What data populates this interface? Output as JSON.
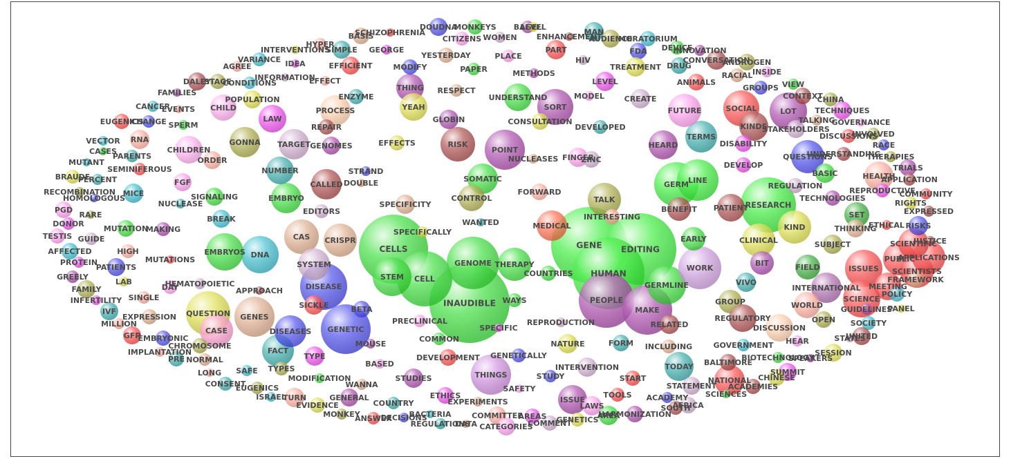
{
  "words": [
    {
      "t": "CELLS",
      "c": "#33dd33",
      "r": 50
    },
    {
      "t": "INAUDIBLE",
      "c": "#33dd33",
      "r": 58
    },
    {
      "t": "CELL",
      "c": "#33dd33",
      "r": 40
    },
    {
      "t": "GENOME",
      "c": "#33dd33",
      "r": 38
    },
    {
      "t": "STEM",
      "c": "#33dd33",
      "r": 28
    },
    {
      "t": "THERAPY",
      "c": "#33dd33",
      "r": 24
    },
    {
      "t": "GENE",
      "c": "#33ee33",
      "r": 55
    },
    {
      "t": "EDITING",
      "c": "#33ee33",
      "r": 52
    },
    {
      "t": "HUMAN",
      "c": "#33ee33",
      "r": 52
    },
    {
      "t": "PEOPLE",
      "c": "#aa44aa",
      "r": 40
    },
    {
      "t": "MAKE",
      "c": "#aa44aa",
      "r": 36
    },
    {
      "t": "GERMLINE",
      "c": "#33dd33",
      "r": 28
    },
    {
      "t": "RESEARCH",
      "c": "#33ee33",
      "r": 40
    },
    {
      "t": "GERM",
      "c": "#33ee33",
      "r": 32
    },
    {
      "t": "LINE",
      "c": "#33ee33",
      "r": 30
    },
    {
      "t": "DISEASE",
      "c": "#4444ee",
      "r": 34
    },
    {
      "t": "GENETIC",
      "c": "#4444ee",
      "r": 36
    },
    {
      "t": "DNA",
      "c": "#33bbcc",
      "r": 27
    },
    {
      "t": "EMBRYOS",
      "c": "#33dd33",
      "r": 27
    },
    {
      "t": "EMBRYO",
      "c": "#33dd33",
      "r": 22
    },
    {
      "t": "CAS",
      "c": "#ddaa88",
      "r": 25
    },
    {
      "t": "CRISPR",
      "c": "#ddaa88",
      "r": 24
    },
    {
      "t": "SYSTEM",
      "c": "#ccaacc",
      "r": 23
    },
    {
      "t": "GENES",
      "c": "#ddaa88",
      "r": 29
    },
    {
      "t": "QUESTION",
      "c": "#dddd44",
      "r": 32
    },
    {
      "t": "CASE",
      "c": "#ff99cc",
      "r": 24
    },
    {
      "t": "FACT",
      "c": "#33aaaa",
      "r": 23
    },
    {
      "t": "DISEASES",
      "c": "#4444ee",
      "r": 23
    },
    {
      "t": "THINGS",
      "c": "#cc88dd",
      "r": 29
    },
    {
      "t": "WORK",
      "c": "#cc99dd",
      "r": 31
    },
    {
      "t": "POINT",
      "c": "#aa44aa",
      "r": 29
    },
    {
      "t": "RISK",
      "c": "#aa4444",
      "r": 25
    },
    {
      "t": "TALK",
      "c": "#aaaa44",
      "r": 24
    },
    {
      "t": "MEDICAL",
      "c": "#ff6644",
      "r": 22
    },
    {
      "t": "SOMATIC",
      "c": "#33dd33",
      "r": 22
    },
    {
      "t": "CONTROL",
      "c": "#aaaa44",
      "r": 19
    },
    {
      "t": "SOCIAL",
      "c": "#ff4444",
      "r": 26
    },
    {
      "t": "LOT",
      "c": "#aa44aa",
      "r": 27
    },
    {
      "t": "KINDS",
      "c": "#aa4444",
      "r": 21
    },
    {
      "t": "QUESTIONS",
      "c": "#4444ee",
      "r": 24
    },
    {
      "t": "KIND",
      "c": "#dddd44",
      "r": 24
    },
    {
      "t": "PATIENT",
      "c": "#aa4444",
      "r": 20
    },
    {
      "t": "CLINICAL",
      "c": "#dddd44",
      "r": 24
    },
    {
      "t": "SORT",
      "c": "#aa44aa",
      "r": 26
    },
    {
      "t": "UNDERSTAND",
      "c": "#33dd33",
      "r": 20
    },
    {
      "t": "HEARD",
      "c": "#aa44aa",
      "r": 21
    },
    {
      "t": "TERMS",
      "c": "#33aaaa",
      "r": 23
    },
    {
      "t": "FUTURE",
      "c": "#ff99ee",
      "r": 24
    },
    {
      "t": "BENEFIT",
      "c": "#aa4444",
      "r": 17
    },
    {
      "t": "EARLY",
      "c": "#33dd33",
      "r": 17
    },
    {
      "t": "BIT",
      "c": "#aa44aa",
      "r": 17
    },
    {
      "t": "FIELD",
      "c": "#33aa33",
      "r": 18
    },
    {
      "t": "INTERNATIONAL",
      "c": "#aa66aa",
      "r": 22
    },
    {
      "t": "ISSUES",
      "c": "#ff4444",
      "r": 27
    },
    {
      "t": "PUBLIC",
      "c": "#ff4444",
      "r": 24
    },
    {
      "t": "SCIENCE",
      "c": "#ff4444",
      "r": 27
    },
    {
      "t": "SCIENTISTS",
      "c": "#ff4444",
      "r": 24
    },
    {
      "t": "APPLICATIONS",
      "c": "#ff4444",
      "r": 24
    },
    {
      "t": "SCIENTIFIC",
      "c": "#ff4444",
      "r": 22
    },
    {
      "t": "MEETING",
      "c": "#ff4444",
      "r": 20
    },
    {
      "t": "SET",
      "c": "#33aa33",
      "r": 18
    },
    {
      "t": "HEALTH",
      "c": "#ffaa99",
      "r": 21
    },
    {
      "t": "GROUP",
      "c": "#aaaa44",
      "r": 17
    },
    {
      "t": "REGULATORY",
      "c": "#aa4444",
      "r": 20
    },
    {
      "t": "DISCUSSION",
      "c": "#ffccaa",
      "r": 20
    },
    {
      "t": "WORLD",
      "c": "#ffaa99",
      "r": 19
    },
    {
      "t": "TODAY",
      "c": "#33aaaa",
      "r": 21
    },
    {
      "t": "ISSUE",
      "c": "#aa44aa",
      "r": 21
    },
    {
      "t": "NATIONAL",
      "c": "#ff4444",
      "r": 22
    },
    {
      "t": "CALLED",
      "c": "#aa4444",
      "r": 22
    },
    {
      "t": "NUMBER",
      "c": "#33aaaa",
      "r": 20
    },
    {
      "t": "GONNA",
      "c": "#aaaa44",
      "r": 22
    },
    {
      "t": "TARGET",
      "c": "#ccaacc",
      "r": 22
    },
    {
      "t": "PROCESS",
      "c": "#ffccaa",
      "r": 22
    },
    {
      "t": "LAW",
      "c": "#ee44ee",
      "r": 20
    },
    {
      "t": "CHILD",
      "c": "#ffaaee",
      "r": 19
    },
    {
      "t": "CHILDREN",
      "c": "#ffaaee",
      "r": 20
    },
    {
      "t": "THING",
      "c": "#aa44aa",
      "r": 20
    },
    {
      "t": "YEAH",
      "c": "#dddd44",
      "r": 20
    }
  ]
}
